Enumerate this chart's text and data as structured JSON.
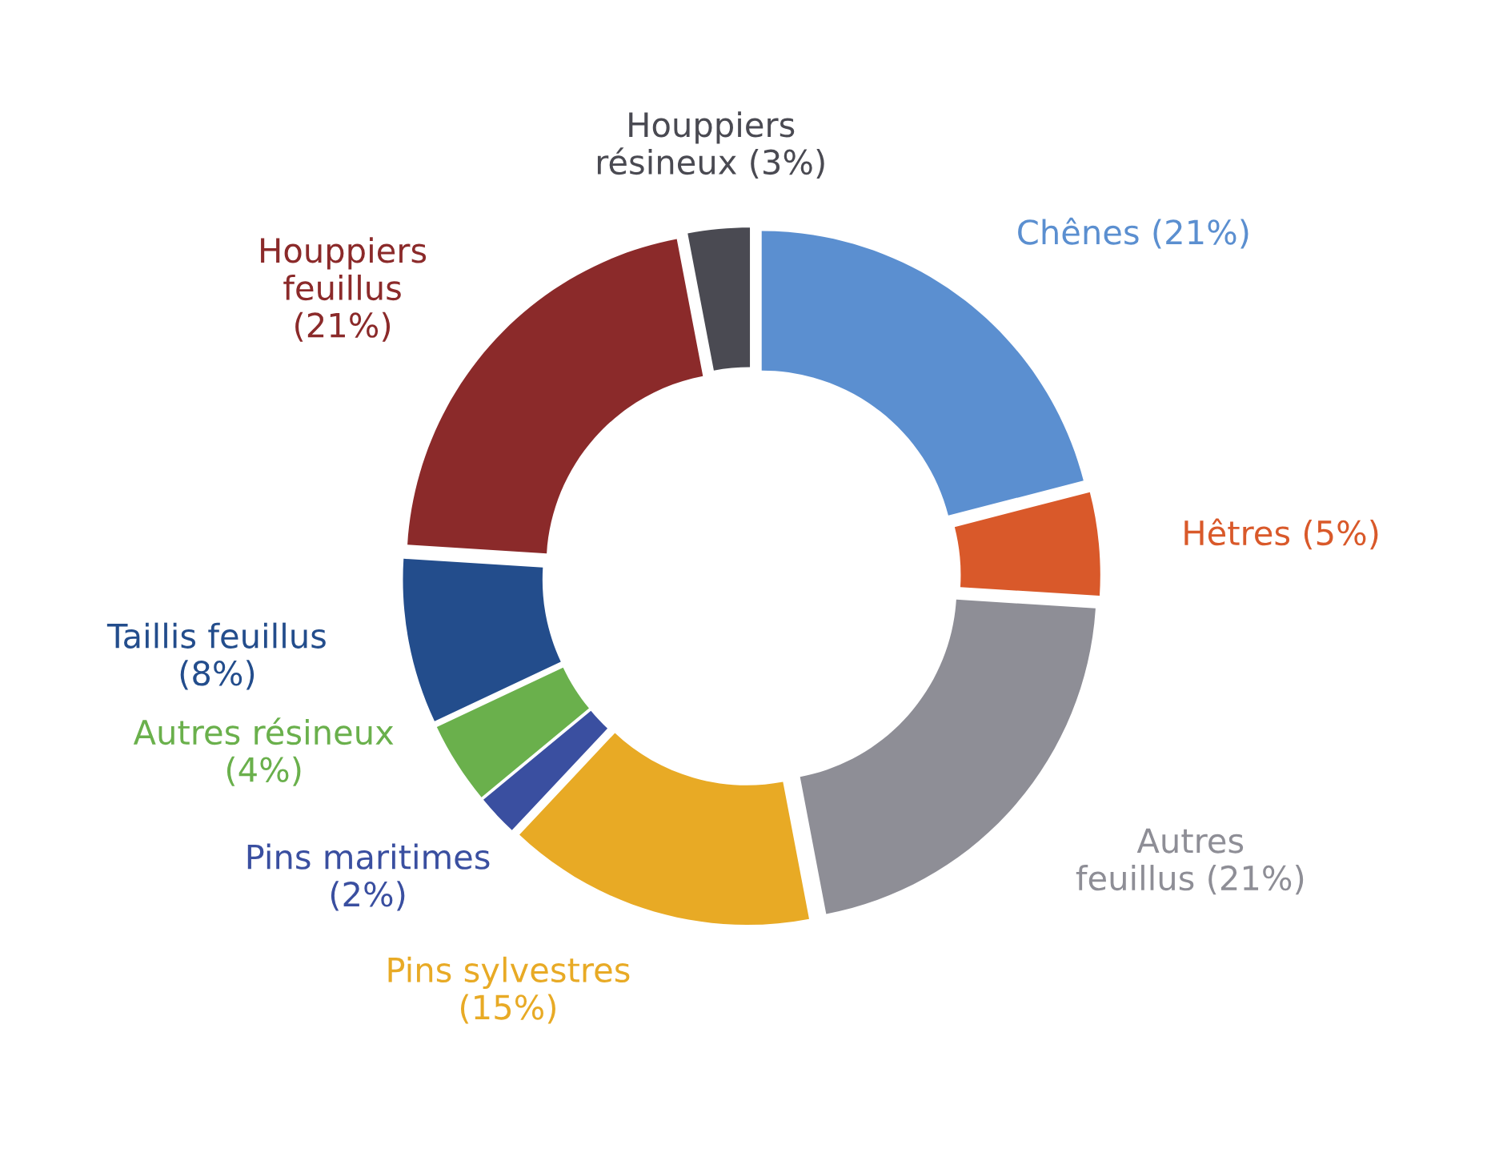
{
  "chart_data": {
    "type": "donut",
    "categories": [
      "Chênes (21%)",
      "Hêtres (5%)",
      "Autres\nfeuillus (21%)",
      "Pins sylvestres\n(15%)",
      "Pins maritimes\n(2%)",
      "Autres résineux\n(4%)",
      "Taillis feuillus\n(8%)",
      "Houppiers\nfeuillus\n(21%)",
      "Houppiers\nrésineux (3%)"
    ],
    "values": [
      21,
      5,
      21,
      15,
      2,
      4,
      8,
      21,
      3
    ],
    "colors": [
      "#5b8fd0",
      "#d9592a",
      "#8e8e96",
      "#e8aa25",
      "#3a4fa0",
      "#6ab04c",
      "#234d8c",
      "#8b2a2a",
      "#4a4a52"
    ],
    "legend": false
  }
}
